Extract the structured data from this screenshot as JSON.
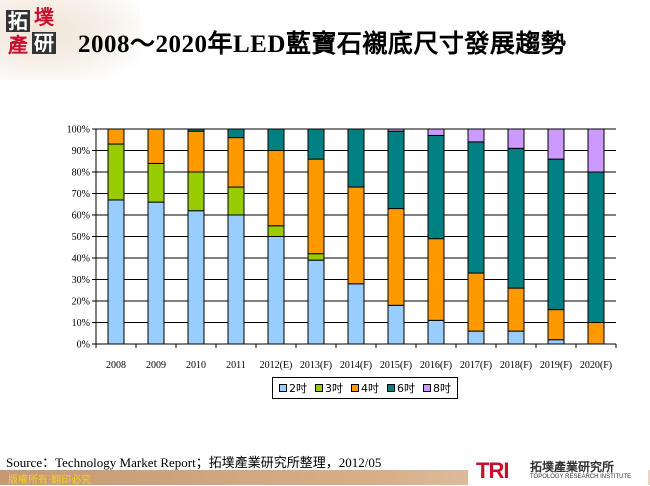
{
  "logo": {
    "chars": [
      "拓",
      "墣",
      "產",
      "研"
    ]
  },
  "title": "2008～2020年LED藍寶石襯底尺寸發展趨勢",
  "source": "Source：Technology  Market Report；拓墣產業研究所整理，2012/05",
  "footer": {
    "copyright": "版權所有‧翻印必究",
    "tri_mark": "TRI",
    "tri_cn": "拓墣產業研究所",
    "tri_en": "TOPOLOGY RESEARCH INSTITUTE"
  },
  "chart_data": {
    "type": "bar",
    "stacked": true,
    "percent": true,
    "categories": [
      "2008",
      "2009",
      "2010",
      "2011",
      "2012(E)",
      "2013(F)",
      "2014(F)",
      "2015(F)",
      "2016(F)",
      "2017(F)",
      "2018(F)",
      "2019(F)",
      "2020(F)"
    ],
    "series": [
      {
        "name": "2吋",
        "color": "#99ccff",
        "values": [
          67,
          66,
          62,
          60,
          50,
          39,
          28,
          18,
          11,
          6,
          6,
          2,
          0
        ]
      },
      {
        "name": "3吋",
        "color": "#99cc00",
        "values": [
          26,
          18,
          18,
          13,
          5,
          3,
          0,
          0,
          0,
          0,
          0,
          0,
          0
        ]
      },
      {
        "name": "4吋",
        "color": "#ff9900",
        "values": [
          7,
          16,
          19,
          23,
          35,
          44,
          45,
          45,
          38,
          27,
          20,
          14,
          10
        ]
      },
      {
        "name": "6吋",
        "color": "#008080",
        "values": [
          0,
          0,
          1,
          4,
          10,
          14,
          27,
          36,
          48,
          61,
          65,
          70,
          70
        ]
      },
      {
        "name": "8吋",
        "color": "#cc99ff",
        "values": [
          0,
          0,
          0,
          0,
          0,
          0,
          0,
          1,
          3,
          6,
          9,
          14,
          20
        ]
      }
    ],
    "ylim": [
      0,
      100
    ],
    "yticks": [
      "0%",
      "10%",
      "20%",
      "30%",
      "40%",
      "50%",
      "60%",
      "70%",
      "80%",
      "90%",
      "100%"
    ],
    "grid": true,
    "legend": "bottom"
  }
}
